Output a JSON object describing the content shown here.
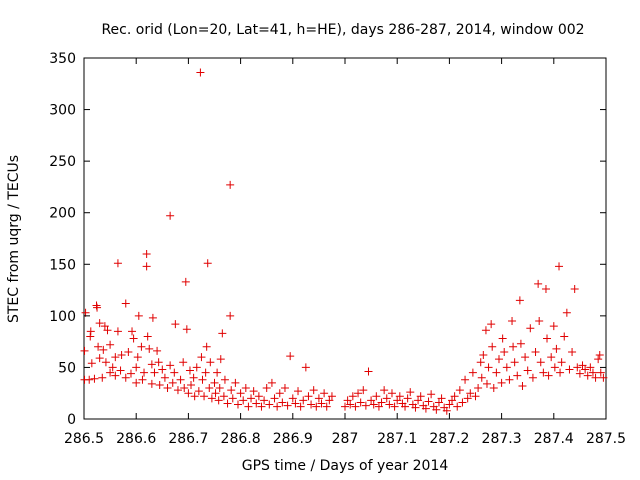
{
  "chart_data": {
    "type": "scatter",
    "title": "Rec. orid (Lon=20, Lat=41, h=HE), days 286-287, 2014, window 002",
    "xlabel": "GPS time / Days of year 2014",
    "ylabel": "STEC from uqrg / TECUs",
    "xlim": [
      286.5,
      287.5
    ],
    "ylim": [
      0,
      350
    ],
    "x_ticks": [
      286.5,
      286.6,
      286.7,
      286.8,
      286.9,
      287,
      287.1,
      287.2,
      287.3,
      287.4,
      287.5
    ],
    "x_tick_labels": [
      "286.5",
      "286.6",
      "286.7",
      "286.8",
      "286.9",
      "287",
      "287.1",
      "287.2",
      "287.3",
      "287.4",
      "287.5"
    ],
    "y_ticks": [
      0,
      50,
      100,
      150,
      200,
      250,
      300,
      350
    ],
    "y_tick_labels": [
      "0",
      "50",
      "100",
      "150",
      "200",
      "250",
      "300",
      "350"
    ],
    "grid": false,
    "marker": "+",
    "color": "#e00000",
    "series": [
      {
        "name": "STEC",
        "points": [
          [
            286.501,
            38
          ],
          [
            286.501,
            66
          ],
          [
            286.503,
            103
          ],
          [
            286.51,
            38
          ],
          [
            286.512,
            80
          ],
          [
            286.513,
            85
          ],
          [
            286.515,
            54
          ],
          [
            286.52,
            39
          ],
          [
            286.524,
            110
          ],
          [
            286.525,
            108
          ],
          [
            286.527,
            70
          ],
          [
            286.53,
            59
          ],
          [
            286.53,
            93
          ],
          [
            286.535,
            40
          ],
          [
            286.537,
            67
          ],
          [
            286.54,
            90
          ],
          [
            286.542,
            55
          ],
          [
            286.545,
            86
          ],
          [
            286.55,
            45
          ],
          [
            286.55,
            72
          ],
          [
            286.555,
            50
          ],
          [
            286.56,
            42
          ],
          [
            286.56,
            60
          ],
          [
            286.565,
            151
          ],
          [
            286.565,
            85
          ],
          [
            286.57,
            47
          ],
          [
            286.572,
            62
          ],
          [
            286.58,
            112
          ],
          [
            286.58,
            40
          ],
          [
            286.585,
            65
          ],
          [
            286.59,
            44
          ],
          [
            286.592,
            85
          ],
          [
            286.595,
            78
          ],
          [
            286.6,
            35
          ],
          [
            286.6,
            50
          ],
          [
            286.603,
            60
          ],
          [
            286.605,
            100
          ],
          [
            286.61,
            70
          ],
          [
            286.612,
            38
          ],
          [
            286.615,
            45
          ],
          [
            286.62,
            160
          ],
          [
            286.62,
            148
          ],
          [
            286.622,
            80
          ],
          [
            286.625,
            68
          ],
          [
            286.63,
            53
          ],
          [
            286.63,
            34
          ],
          [
            286.632,
            98
          ],
          [
            286.635,
            45
          ],
          [
            286.64,
            66
          ],
          [
            286.643,
            55
          ],
          [
            286.645,
            33
          ],
          [
            286.65,
            48
          ],
          [
            286.655,
            40
          ],
          [
            286.66,
            30
          ],
          [
            286.665,
            197
          ],
          [
            286.665,
            52
          ],
          [
            286.67,
            35
          ],
          [
            286.673,
            45
          ],
          [
            286.675,
            92
          ],
          [
            286.68,
            28
          ],
          [
            286.685,
            38
          ],
          [
            286.69,
            55
          ],
          [
            286.692,
            30
          ],
          [
            286.695,
            133
          ],
          [
            286.697,
            87
          ],
          [
            286.7,
            25
          ],
          [
            286.703,
            47
          ],
          [
            286.705,
            33
          ],
          [
            286.71,
            40
          ],
          [
            286.712,
            22
          ],
          [
            286.716,
            50
          ],
          [
            286.72,
            27
          ],
          [
            286.723,
            336
          ],
          [
            286.725,
            60
          ],
          [
            286.727,
            38
          ],
          [
            286.73,
            22
          ],
          [
            286.733,
            45
          ],
          [
            286.735,
            70
          ],
          [
            286.737,
            151
          ],
          [
            286.74,
            30
          ],
          [
            286.742,
            55
          ],
          [
            286.745,
            20
          ],
          [
            286.75,
            35
          ],
          [
            286.752,
            25
          ],
          [
            286.755,
            45
          ],
          [
            286.758,
            18
          ],
          [
            286.76,
            30
          ],
          [
            286.762,
            58
          ],
          [
            286.765,
            83
          ],
          [
            286.768,
            22
          ],
          [
            286.77,
            38
          ],
          [
            286.775,
            15
          ],
          [
            286.78,
            227
          ],
          [
            286.78,
            100
          ],
          [
            286.782,
            28
          ],
          [
            286.785,
            20
          ],
          [
            286.79,
            35
          ],
          [
            286.795,
            14
          ],
          [
            286.8,
            25
          ],
          [
            286.805,
            18
          ],
          [
            286.81,
            30
          ],
          [
            286.815,
            12
          ],
          [
            286.82,
            20
          ],
          [
            286.825,
            27
          ],
          [
            286.83,
            15
          ],
          [
            286.835,
            22
          ],
          [
            286.84,
            12
          ],
          [
            286.845,
            18
          ],
          [
            286.85,
            30
          ],
          [
            286.855,
            14
          ],
          [
            286.86,
            35
          ],
          [
            286.865,
            20
          ],
          [
            286.87,
            12
          ],
          [
            286.875,
            25
          ],
          [
            286.88,
            16
          ],
          [
            286.885,
            30
          ],
          [
            286.89,
            13
          ],
          [
            286.895,
            61
          ],
          [
            286.9,
            20
          ],
          [
            286.905,
            15
          ],
          [
            286.91,
            27
          ],
          [
            286.915,
            12
          ],
          [
            286.92,
            18
          ],
          [
            286.925,
            50
          ],
          [
            286.93,
            22
          ],
          [
            286.935,
            14
          ],
          [
            286.94,
            28
          ],
          [
            286.945,
            12
          ],
          [
            286.95,
            20
          ],
          [
            286.955,
            15
          ],
          [
            286.96,
            25
          ],
          [
            286.965,
            12
          ],
          [
            286.97,
            18
          ],
          [
            286.975,
            22
          ],
          [
            287.0,
            12
          ],
          [
            287.005,
            18
          ],
          [
            287.01,
            14
          ],
          [
            287.015,
            22
          ],
          [
            287.02,
            12
          ],
          [
            287.025,
            25
          ],
          [
            287.03,
            16
          ],
          [
            287.035,
            28
          ],
          [
            287.04,
            13
          ],
          [
            287.045,
            46
          ],
          [
            287.05,
            18
          ],
          [
            287.055,
            14
          ],
          [
            287.06,
            22
          ],
          [
            287.065,
            12
          ],
          [
            287.07,
            16
          ],
          [
            287.075,
            28
          ],
          [
            287.08,
            20
          ],
          [
            287.085,
            14
          ],
          [
            287.09,
            25
          ],
          [
            287.095,
            12
          ],
          [
            287.1,
            18
          ],
          [
            287.105,
            22
          ],
          [
            287.11,
            15
          ],
          [
            287.115,
            12
          ],
          [
            287.12,
            20
          ],
          [
            287.125,
            26
          ],
          [
            287.13,
            14
          ],
          [
            287.135,
            11
          ],
          [
            287.14,
            18
          ],
          [
            287.145,
            22
          ],
          [
            287.15,
            13
          ],
          [
            287.155,
            10
          ],
          [
            287.16,
            17
          ],
          [
            287.165,
            24
          ],
          [
            287.17,
            12
          ],
          [
            287.175,
            9
          ],
          [
            287.18,
            16
          ],
          [
            287.185,
            20
          ],
          [
            287.19,
            11
          ],
          [
            287.195,
            8
          ],
          [
            287.2,
            14
          ],
          [
            287.205,
            18
          ],
          [
            287.21,
            22
          ],
          [
            287.215,
            12
          ],
          [
            287.22,
            28
          ],
          [
            287.225,
            16
          ],
          [
            287.23,
            38
          ],
          [
            287.235,
            20
          ],
          [
            287.24,
            25
          ],
          [
            287.245,
            45
          ],
          [
            287.25,
            22
          ],
          [
            287.255,
            30
          ],
          [
            287.26,
            55
          ],
          [
            287.262,
            40
          ],
          [
            287.265,
            62
          ],
          [
            287.27,
            86
          ],
          [
            287.272,
            34
          ],
          [
            287.275,
            50
          ],
          [
            287.28,
            92
          ],
          [
            287.282,
            70
          ],
          [
            287.285,
            30
          ],
          [
            287.29,
            45
          ],
          [
            287.295,
            58
          ],
          [
            287.3,
            35
          ],
          [
            287.302,
            78
          ],
          [
            287.305,
            65
          ],
          [
            287.31,
            50
          ],
          [
            287.315,
            38
          ],
          [
            287.32,
            95
          ],
          [
            287.322,
            70
          ],
          [
            287.325,
            55
          ],
          [
            287.33,
            42
          ],
          [
            287.335,
            115
          ],
          [
            287.337,
            73
          ],
          [
            287.34,
            32
          ],
          [
            287.345,
            60
          ],
          [
            287.35,
            47
          ],
          [
            287.355,
            88
          ],
          [
            287.36,
            40
          ],
          [
            287.365,
            65
          ],
          [
            287.37,
            131
          ],
          [
            287.372,
            95
          ],
          [
            287.375,
            55
          ],
          [
            287.38,
            45
          ],
          [
            287.385,
            126
          ],
          [
            287.387,
            78
          ],
          [
            287.39,
            42
          ],
          [
            287.395,
            60
          ],
          [
            287.4,
            90
          ],
          [
            287.402,
            50
          ],
          [
            287.405,
            68
          ],
          [
            287.41,
            148
          ],
          [
            287.412,
            45
          ],
          [
            287.415,
            55
          ],
          [
            287.42,
            80
          ],
          [
            287.425,
            103
          ],
          [
            287.43,
            48
          ],
          [
            287.435,
            65
          ],
          [
            287.44,
            126
          ],
          [
            287.445,
            50
          ],
          [
            287.45,
            44
          ],
          [
            287.455,
            52
          ],
          [
            287.46,
            48
          ],
          [
            287.465,
            42
          ],
          [
            287.47,
            50
          ],
          [
            287.475,
            45
          ],
          [
            287.48,
            40
          ],
          [
            287.485,
            58
          ],
          [
            287.488,
            62
          ],
          [
            287.49,
            45
          ],
          [
            287.495,
            40
          ]
        ]
      }
    ]
  }
}
